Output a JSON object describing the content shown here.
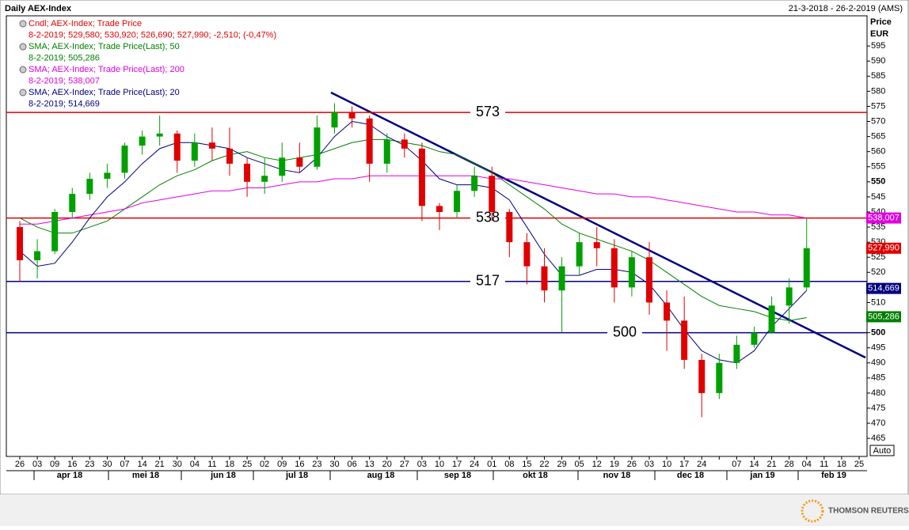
{
  "chart_data": {
    "type": "candlestick",
    "title": "Daily AEX-Index",
    "date_range": "21-3-2018 - 26-2-2019 (AMS)",
    "y_label": "Price",
    "y_unit": "EUR",
    "scale_mode": "Auto",
    "watermark": "THOMSON REUTERS",
    "categories": [
      "26",
      "03",
      "09",
      "16",
      "23",
      "30",
      "07",
      "14",
      "21",
      "30",
      "04",
      "11",
      "18",
      "25",
      "02",
      "09",
      "16",
      "23",
      "30",
      "06",
      "13",
      "20",
      "27",
      "03",
      "10",
      "17",
      "24",
      "01",
      "08",
      "15",
      "22",
      "29",
      "05",
      "12",
      "19",
      "26",
      "03",
      "10",
      "17",
      "24",
      null,
      "07",
      "14",
      "21",
      "28",
      "04",
      "11",
      "18",
      "25"
    ],
    "months": [
      "apr 18",
      "mei 18",
      "jun 18",
      "jul 18",
      "aug 18",
      "sep 18",
      "okt 18",
      "nov 18",
      "dec 18",
      "jan 19",
      "feb 19"
    ],
    "candle_legend": {
      "name": "Cndl; AEX-Index; Trade Price",
      "detail": "8-2-2019; 529,580; 530,920; 526,690; 527,990; -2,510; (-0,47%)",
      "color": "#e00000"
    },
    "up_color": "#00a000",
    "down_color": "#e00000",
    "open": [
      535,
      524,
      527,
      540,
      546,
      551,
      553,
      562,
      565,
      566,
      557,
      563,
      561,
      556,
      550,
      552,
      558,
      555,
      568,
      573,
      571,
      556,
      564,
      561,
      542,
      540,
      547,
      552,
      540,
      530,
      522,
      514,
      522,
      530,
      528,
      515,
      525,
      510,
      504,
      491,
      480,
      490,
      496,
      500,
      509,
      515,
      null,
      null,
      null
    ],
    "high": [
      537,
      531,
      541,
      548,
      553,
      556,
      563,
      567,
      572,
      567,
      566,
      568,
      568,
      558,
      558,
      563,
      563,
      572,
      576,
      575,
      572,
      566,
      566,
      563,
      543,
      549,
      555,
      555,
      541,
      533,
      528,
      525,
      533,
      535,
      531,
      527,
      530,
      514,
      512,
      493,
      493,
      499,
      502,
      512,
      518,
      538,
      null,
      null,
      null
    ],
    "low": [
      517,
      518,
      526,
      538,
      544,
      548,
      551,
      559,
      562,
      553,
      555,
      557,
      552,
      545,
      546,
      550,
      553,
      554,
      566,
      568,
      550,
      553,
      558,
      537,
      534,
      538,
      545,
      537,
      525,
      516,
      510,
      500,
      519,
      522,
      510,
      512,
      506,
      494,
      488,
      472,
      478,
      488,
      495,
      500,
      503,
      514,
      null,
      null,
      null
    ],
    "close": [
      524,
      527,
      540,
      546,
      551,
      553,
      562,
      565,
      566,
      557,
      563,
      561,
      556,
      550,
      552,
      558,
      555,
      568,
      573,
      571,
      556,
      564,
      561,
      542,
      540,
      547,
      552,
      540,
      530,
      522,
      514,
      522,
      530,
      528,
      515,
      525,
      510,
      504,
      491,
      480,
      490,
      496,
      500,
      509,
      515,
      528,
      null,
      null,
      null
    ],
    "series": [
      {
        "name": "SMA; AEX-Index; Trade Price(Last); 50",
        "detail": "8-2-2019; 505,286",
        "color": "#008000",
        "tag": {
          "value": 505.286,
          "label": "505,286"
        },
        "values": [
          538,
          535,
          533,
          533,
          535,
          537,
          541,
          545,
          549,
          552,
          554,
          557,
          559,
          560,
          558,
          557,
          558,
          559,
          561,
          563,
          564,
          564,
          563,
          562,
          560,
          559,
          556,
          553,
          549,
          545,
          541,
          536,
          533,
          531,
          529,
          527,
          524,
          520,
          516,
          512,
          509,
          508,
          507,
          505,
          504,
          505,
          null,
          null,
          null
        ]
      },
      {
        "name": "SMA; AEX-Index; Trade Price(Last); 200",
        "detail": "8-2-2019; 538,007",
        "color": "#e000e0",
        "tag": {
          "value": 538.007,
          "label": "538,007"
        },
        "values": [
          536,
          536,
          537,
          538,
          539,
          540,
          541,
          543,
          544,
          545,
          546,
          547,
          547,
          548,
          548,
          549,
          550,
          550,
          551,
          551,
          552,
          552,
          552,
          552,
          552,
          552,
          552,
          551,
          551,
          550,
          549,
          548,
          547,
          546,
          546,
          545,
          545,
          544,
          543,
          542,
          541,
          540,
          540,
          539,
          539,
          538,
          null,
          null,
          null
        ]
      },
      {
        "name": "SMA; AEX-Index; Trade Price(Last); 20",
        "detail": "8-2-2019; 514,669",
        "color": "#000080",
        "tag": {
          "value": 514.669,
          "label": "514,669"
        },
        "values": [
          527,
          522,
          523,
          530,
          538,
          545,
          550,
          556,
          561,
          563,
          563,
          562,
          561,
          558,
          556,
          554,
          553,
          558,
          565,
          570,
          569,
          565,
          562,
          557,
          551,
          549,
          549,
          548,
          544,
          535,
          526,
          519,
          519,
          521,
          521,
          520,
          516,
          509,
          501,
          494,
          491,
          490,
          494,
          502,
          508,
          514,
          null,
          null,
          null
        ]
      }
    ],
    "close_tag": {
      "value": 527.99,
      "label": "527,990",
      "color": "#e00000"
    },
    "levels": [
      {
        "value": 573,
        "color": "#e00000"
      },
      {
        "value": 538,
        "color": "#e00000"
      },
      {
        "value": 517,
        "color": "#000080"
      },
      {
        "value": 500,
        "color": "#000080"
      }
    ],
    "ylim": [
      459,
      605
    ],
    "yticks": [
      465,
      470,
      475,
      480,
      485,
      490,
      495,
      500,
      505,
      510,
      515,
      520,
      525,
      530,
      535,
      540,
      545,
      550,
      555,
      560,
      565,
      570,
      575,
      580,
      585,
      590,
      595
    ]
  }
}
